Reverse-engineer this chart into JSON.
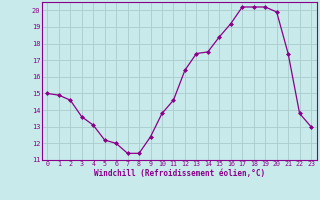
{
  "x": [
    0,
    1,
    2,
    3,
    4,
    5,
    6,
    7,
    8,
    9,
    10,
    11,
    12,
    13,
    14,
    15,
    16,
    17,
    18,
    19,
    20,
    21,
    22,
    23
  ],
  "y": [
    15.0,
    14.9,
    14.6,
    13.6,
    13.1,
    12.2,
    12.0,
    11.4,
    11.4,
    12.4,
    13.8,
    14.6,
    16.4,
    17.4,
    17.5,
    18.4,
    19.2,
    20.2,
    20.2,
    20.2,
    19.9,
    17.4,
    13.8,
    13.0
  ],
  "line_color": "#8b008b",
  "marker": "D",
  "marker_size": 2.0,
  "bg_color": "#c8eaea",
  "grid_color": "#aacccc",
  "xlabel": "Windchill (Refroidissement éolien,°C)",
  "xlabel_color": "#8b008b",
  "tick_color": "#8b008b",
  "spine_color": "#8b008b",
  "ylim": [
    11,
    20.5
  ],
  "yticks": [
    11,
    12,
    13,
    14,
    15,
    16,
    17,
    18,
    19,
    20
  ],
  "xlim": [
    -0.5,
    23.5
  ],
  "xticks": [
    0,
    1,
    2,
    3,
    4,
    5,
    6,
    7,
    8,
    9,
    10,
    11,
    12,
    13,
    14,
    15,
    16,
    17,
    18,
    19,
    20,
    21,
    22,
    23
  ]
}
